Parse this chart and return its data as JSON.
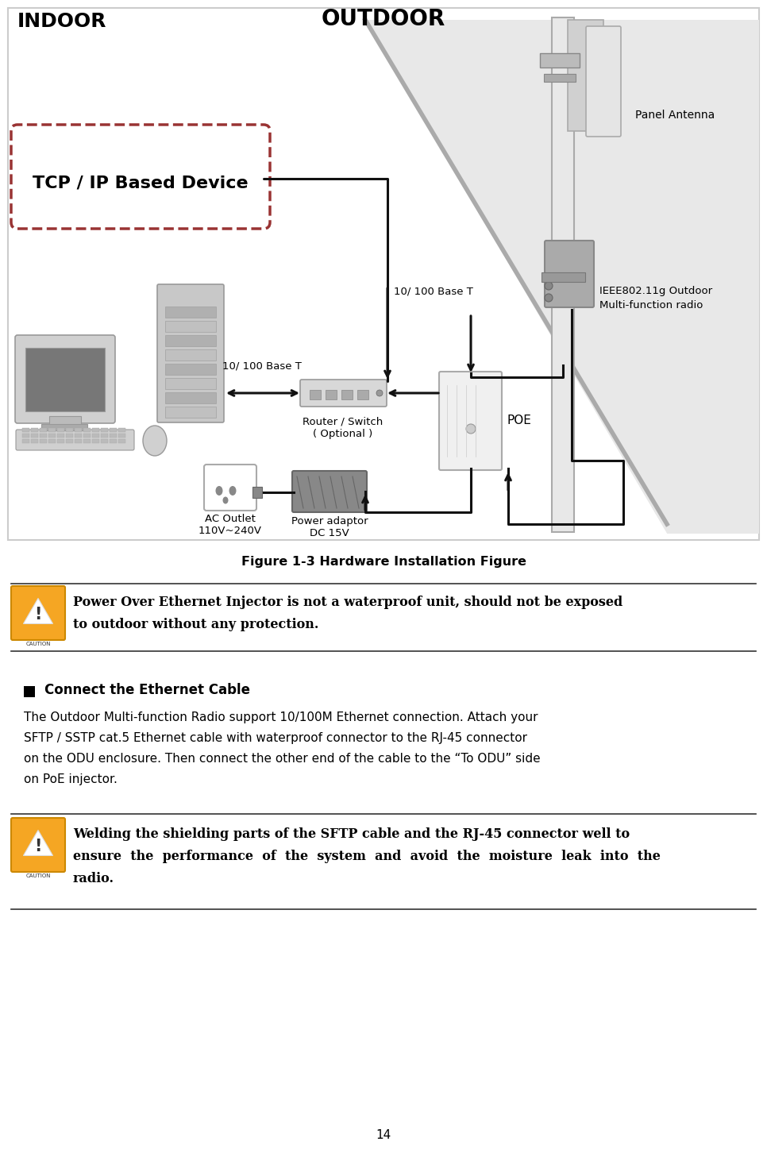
{
  "page_bg": "#ffffff",
  "figure_caption": "Figure 1-3 Hardware Installation Figure",
  "caution1_line1": "Power Over Ethernet Injector is not a waterproof unit, should not be exposed",
  "caution1_line2": "to outdoor without any protection.",
  "section_header": "Connect the Ethernet Cable",
  "section_body_lines": [
    "The Outdoor Multi-function Radio support 10/100M Ethernet connection. Attach your",
    "SFTP / SSTP cat.5 Ethernet cable with waterproof connector to the RJ-45 connector",
    "on the ODU enclosure. Then connect the other end of the cable to the “To ODU” side",
    "on PoE injector."
  ],
  "caution2_line1": "Welding the shielding parts of the SFTP cable and the RJ-45 connector well to",
  "caution2_line2": "ensure  the  performance  of  the  system  and  avoid  the  moisture  leak  into  the",
  "caution2_line3": "radio.",
  "page_number": "14",
  "outdoor_label": "OUTDOOR",
  "indoor_label": "INDOOR",
  "tcp_ip_label": "TCP / IP Based Device",
  "panel_antenna_label": "Panel Antenna",
  "ieee_label_line1": "IEEE802.11g Outdoor",
  "ieee_label_line2": "Multi-function radio",
  "base_t_top": "10/ 100 Base T",
  "base_t_bottom": "10/ 100 Base T",
  "router_label": "Router / Switch\n( Optional )",
  "poe_label": "POE",
  "ac_outlet_label": "AC Outlet\n110V~240V",
  "power_adaptor_label": "Power adaptor\nDC 15V",
  "border_color": "#aaaaaa",
  "tcp_border_color": "#993333",
  "line_color": "#111111",
  "outdoor_fill": "#e8e8e8",
  "indoor_fill": "#ffffff",
  "diag_fill": "#f5f5f5",
  "pole_color": "#e0e0e0",
  "device_gray": "#b8b8b8",
  "device_dark": "#888888",
  "poe_fill": "#f0f0f0"
}
